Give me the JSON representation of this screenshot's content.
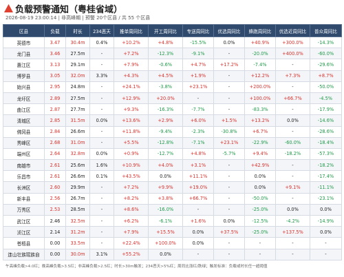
{
  "header": {
    "title": "负载预警通知（粤桂省域）",
    "subtitle": "2026-08-19 23:00:14 | 非高峰期 | 预警 20个区县 / 共 55 个区县"
  },
  "table": {
    "columns": [
      "区县",
      "负载",
      "时长",
      "234恶天",
      "推单周同比",
      "开工周同比",
      "专送周同比",
      "优选周同比",
      "蜂跑周同比",
      "优选近周同比",
      "普众周同比"
    ],
    "rows": [
      [
        "英德市",
        "3.47",
        "30.4m",
        "0.4%",
        "+10.2%",
        "+4.8%",
        "-15.5%",
        "0.0%",
        "+40.9%",
        "+300.0%",
        "-14.3%"
      ],
      [
        "龙门县",
        "3.46",
        "27.5m",
        "-",
        "+7.2%",
        "-12.3%",
        "-9.1%",
        "-",
        "-20.0%",
        "+400.0%",
        "-60.0%"
      ],
      [
        "惠江区",
        "3.13",
        "29.1m",
        "-",
        "+7.9%",
        "-0.6%",
        "+4.7%",
        "+17.2%",
        "-7.4%",
        "-",
        "-29.6%"
      ],
      [
        "博罗县",
        "3.05",
        "32.0m",
        "3.3%",
        "+4.3%",
        "+4.5%",
        "+1.9%",
        "-",
        "+12.2%",
        "+7.3%",
        "+8.7%"
      ],
      [
        "始兴县",
        "2.95",
        "24.8m",
        "-",
        "+24.1%",
        "-3.8%",
        "+23.1%",
        "-",
        "+200.0%",
        "-",
        "-50.0%"
      ],
      [
        "龙圩区",
        "2.89",
        "27.5m",
        "-",
        "+12.9%",
        "+20.0%",
        "-",
        "-",
        "+100.0%",
        "+66.7%",
        "-4.5%"
      ],
      [
        "曲江区",
        "2.87",
        "27.7m",
        "-",
        "+9.3%",
        "-16.3%",
        "-7.7%",
        "-",
        "-83.3%",
        "-",
        "-17.9%"
      ],
      [
        "清城区",
        "2.85",
        "31.5m",
        "0.0%",
        "+13.6%",
        "+2.9%",
        "+6.0%",
        "+1.5%",
        "+13.2%",
        "0.0%",
        "-14.6%"
      ],
      [
        "佛冈县",
        "2.84",
        "26.6m",
        "-",
        "+11.8%",
        "-9.4%",
        "-2.3%",
        "-30.8%",
        "+6.7%",
        "-",
        "-28.6%"
      ],
      [
        "秀峰区",
        "2.68",
        "31.0m",
        "-",
        "+5.5%",
        "-12.8%",
        "-7.1%",
        "+23.1%",
        "-22.9%",
        "-60.0%",
        "-18.4%"
      ],
      [
        "端州区",
        "2.64",
        "32.8m",
        "0.0%",
        "+0.9%",
        "-12.7%",
        "+4.8%",
        "-5.7%",
        "+9.4%",
        "-18.2%",
        "-57.3%"
      ],
      [
        "南雄市",
        "2.61",
        "25.6m",
        "1.6%",
        "+10.9%",
        "+4.0%",
        "+3.1%",
        "-",
        "+42.9%",
        "-",
        "-18.2%"
      ],
      [
        "乐昌市",
        "2.61",
        "26.6m",
        "0.1%",
        "+43.5%",
        "0.0%",
        "+11.1%",
        "-",
        "0.0%",
        "-",
        "-17.4%"
      ],
      [
        "长洲区",
        "2.60",
        "29.9m",
        "-",
        "+7.2%",
        "+9.9%",
        "+19.0%",
        "-",
        "0.0%",
        "+9.1%",
        "-11.1%"
      ],
      [
        "新丰县",
        "2.56",
        "26.7m",
        "-",
        "+8.2%",
        "+3.8%",
        "+66.7%",
        "-",
        "-50.0%",
        "-",
        "-23.1%"
      ],
      [
        "万秀区",
        "2.53",
        "28.5m",
        "-",
        "+8.6%",
        "-16.0%",
        "-",
        "-",
        "-25.0%",
        "0.0%",
        "0.0%"
      ],
      [
        "武江区",
        "2.46",
        "32.5m",
        "-",
        "+6.2%",
        "-6.1%",
        "+1.6%",
        "0.0%",
        "-12.5%",
        "-4.2%",
        "-14.9%"
      ],
      [
        "浈江区",
        "2.14",
        "31.2m",
        "-",
        "+7.9%",
        "+15.5%",
        "0.0%",
        "+37.5%",
        "-25.0%",
        "+137.5%",
        "0.0%"
      ],
      [
        "苍梧县",
        "0.00",
        "33.5m",
        "-",
        "+22.4%",
        "+100.0%",
        "0.0%",
        "-",
        "-",
        "-",
        "-"
      ],
      [
        "连山壮族瑶族自",
        "0.00",
        "30.0m",
        "3.1%",
        "+55.2%",
        "0.0%",
        "-",
        "-",
        "-",
        "-",
        "-"
      ]
    ]
  },
  "footer": "午高峰负载>4.0红；晚高峰负载>3.5红；非高峰负载>2.5红；时长>30m触发；234恶天>5%红；周同比涨红/跌绿；触发标准：负载或时长任一超阈值"
}
